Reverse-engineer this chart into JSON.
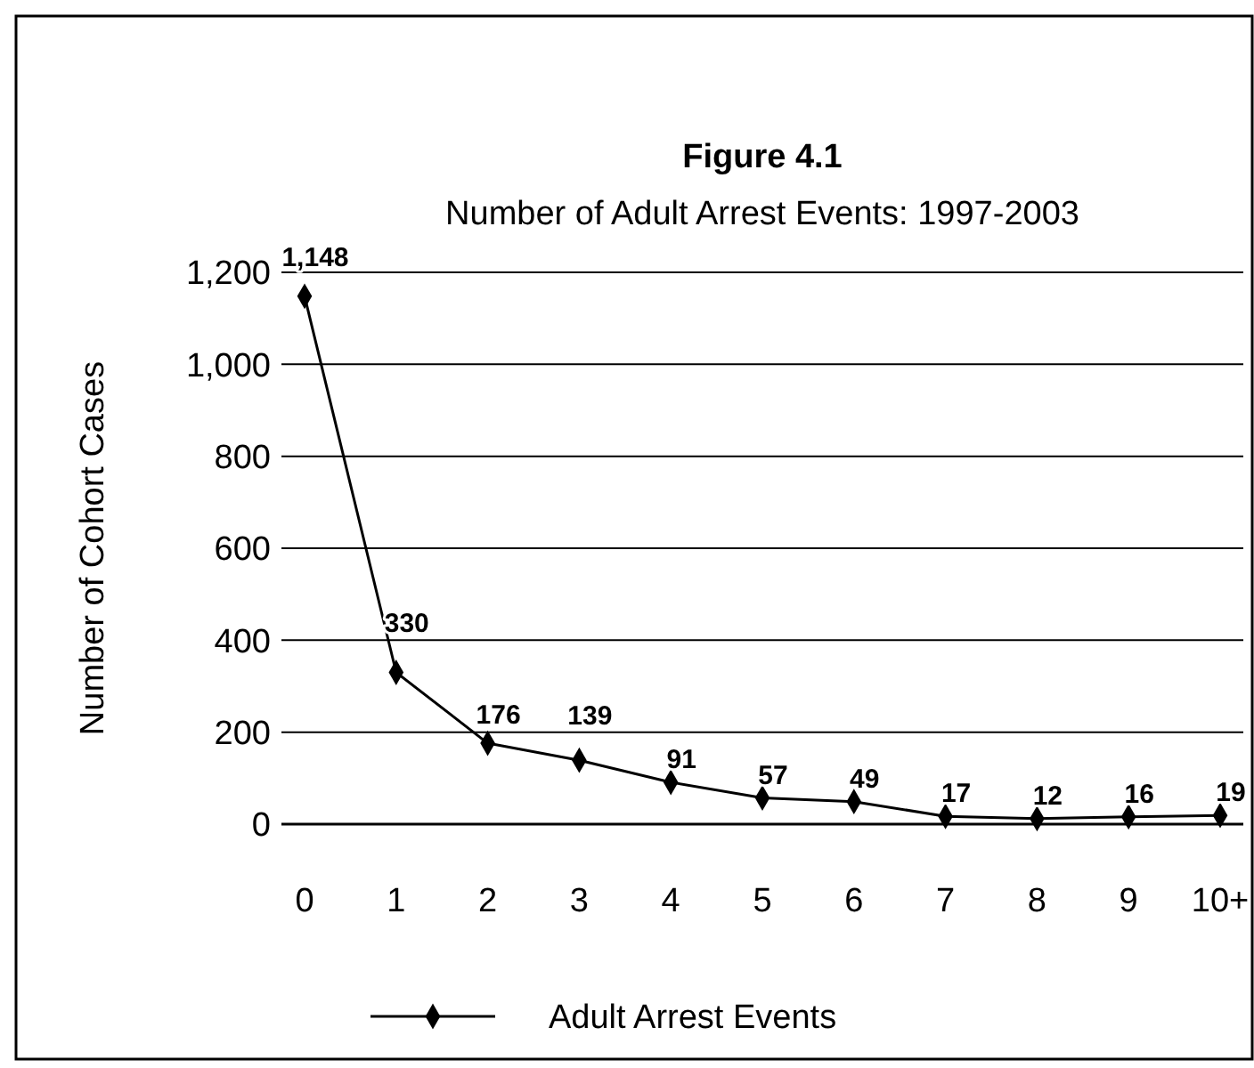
{
  "chart_data": {
    "type": "line",
    "title": "Figure 4.1",
    "subtitle": "Number of Adult Arrest Events: 1997-2003",
    "ylabel": "Number of Cohort Cases",
    "categories": [
      "0",
      "1",
      "2",
      "3",
      "4",
      "5",
      "6",
      "7",
      "8",
      "9",
      "10+"
    ],
    "series": [
      {
        "name": "Adult Arrest Events",
        "color": "#000000",
        "values": [
          1148,
          330,
          176,
          139,
          91,
          57,
          49,
          17,
          12,
          16,
          19
        ]
      }
    ],
    "value_labels": [
      "1,148",
      "330",
      "176",
      "139",
      "91",
      "57",
      "49",
      "17",
      "12",
      "16",
      "19"
    ],
    "ylim": [
      0,
      1200
    ],
    "yticks": [
      0,
      {
        "value": 200,
        "label": "200"
      },
      {
        "value": 400,
        "label": "400"
      },
      {
        "value": 600,
        "label": "600"
      },
      {
        "value": 800,
        "label": "800"
      },
      {
        "value": 1000,
        "label": "1,000"
      },
      {
        "value": 1200,
        "label": "1,200"
      }
    ],
    "grid": "y",
    "legend": "bottom",
    "marker": "diamond",
    "line_style": "solid"
  }
}
